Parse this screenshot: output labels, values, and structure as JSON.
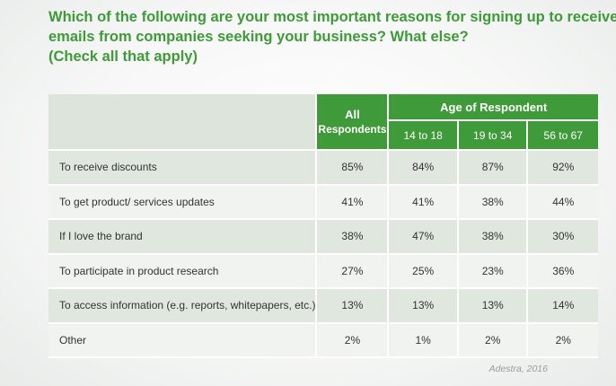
{
  "title": {
    "line1": "Which of the following are your most important reasons for signing up to receive",
    "line2": "emails from companies seeking your business? What else?",
    "line3": "(Check all that apply)"
  },
  "source": "Adestra, 2016",
  "colors": {
    "header_green": "#3f9a3a",
    "row_dark": "#dfe7de",
    "row_light": "#f0f3ef"
  },
  "chart_data": {
    "type": "table",
    "header": {
      "all_line1": "All",
      "all_line2": "Respondents",
      "group": "Age of Respondent",
      "age_groups": [
        "14 to 18",
        "19 to 34",
        "56 to 67"
      ]
    },
    "rows": [
      {
        "label": "To receive discounts",
        "values": [
          "85%",
          "84%",
          "87%",
          "92%"
        ]
      },
      {
        "label": "To get product/ services updates",
        "values": [
          "41%",
          "41%",
          "38%",
          "44%"
        ]
      },
      {
        "label": "If I love the brand",
        "values": [
          "38%",
          "47%",
          "38%",
          "30%"
        ]
      },
      {
        "label": "To participate in product research",
        "values": [
          "27%",
          "25%",
          "23%",
          "36%"
        ]
      },
      {
        "label": "To access information (e.g. reports, whitepapers, etc.)",
        "values": [
          "13%",
          "13%",
          "13%",
          "14%"
        ]
      },
      {
        "label": "Other",
        "values": [
          "2%",
          "1%",
          "2%",
          "2%"
        ]
      }
    ]
  }
}
